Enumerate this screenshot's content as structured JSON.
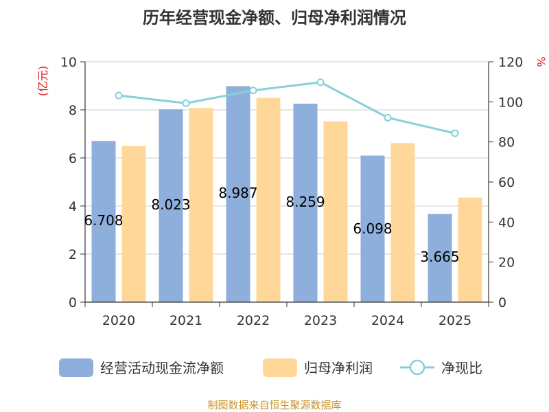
{
  "chart_data": {
    "type": "bar",
    "title": "历年经营现金净额、归母净利润情况",
    "categories": [
      "2020",
      "2021",
      "2022",
      "2023",
      "2024",
      "2025"
    ],
    "series": [
      {
        "name": "经营活动现金流净额",
        "kind": "bar",
        "axis": "left",
        "color": "#8eaedb",
        "values": [
          6.708,
          8.023,
          8.987,
          8.259,
          6.098,
          3.665
        ]
      },
      {
        "name": "归母净利润",
        "kind": "bar",
        "axis": "left",
        "color": "#ffd899",
        "values": [
          6.5,
          8.08,
          8.5,
          7.52,
          6.62,
          4.35
        ]
      },
      {
        "name": "净现比",
        "kind": "line",
        "axis": "right",
        "color": "#86d0d8",
        "values": [
          103.2,
          99.3,
          105.7,
          109.8,
          92.1,
          84.3
        ]
      }
    ],
    "data_labels": [
      "6.708",
      "8.023",
      "8.987",
      "8.259",
      "6.098",
      "3.665"
    ],
    "left_axis": {
      "unit": "(亿元)",
      "min": 0,
      "max": 10,
      "ticks": [
        "0",
        "2",
        "4",
        "6",
        "8",
        "10"
      ]
    },
    "right_axis": {
      "unit": "%",
      "min": 0,
      "max": 120,
      "ticks": [
        "0",
        "20",
        "40",
        "60",
        "80",
        "100",
        "120"
      ]
    },
    "grid": true,
    "legend_position": "bottom"
  },
  "source_text": "制图数据来自恒生聚源数据库"
}
